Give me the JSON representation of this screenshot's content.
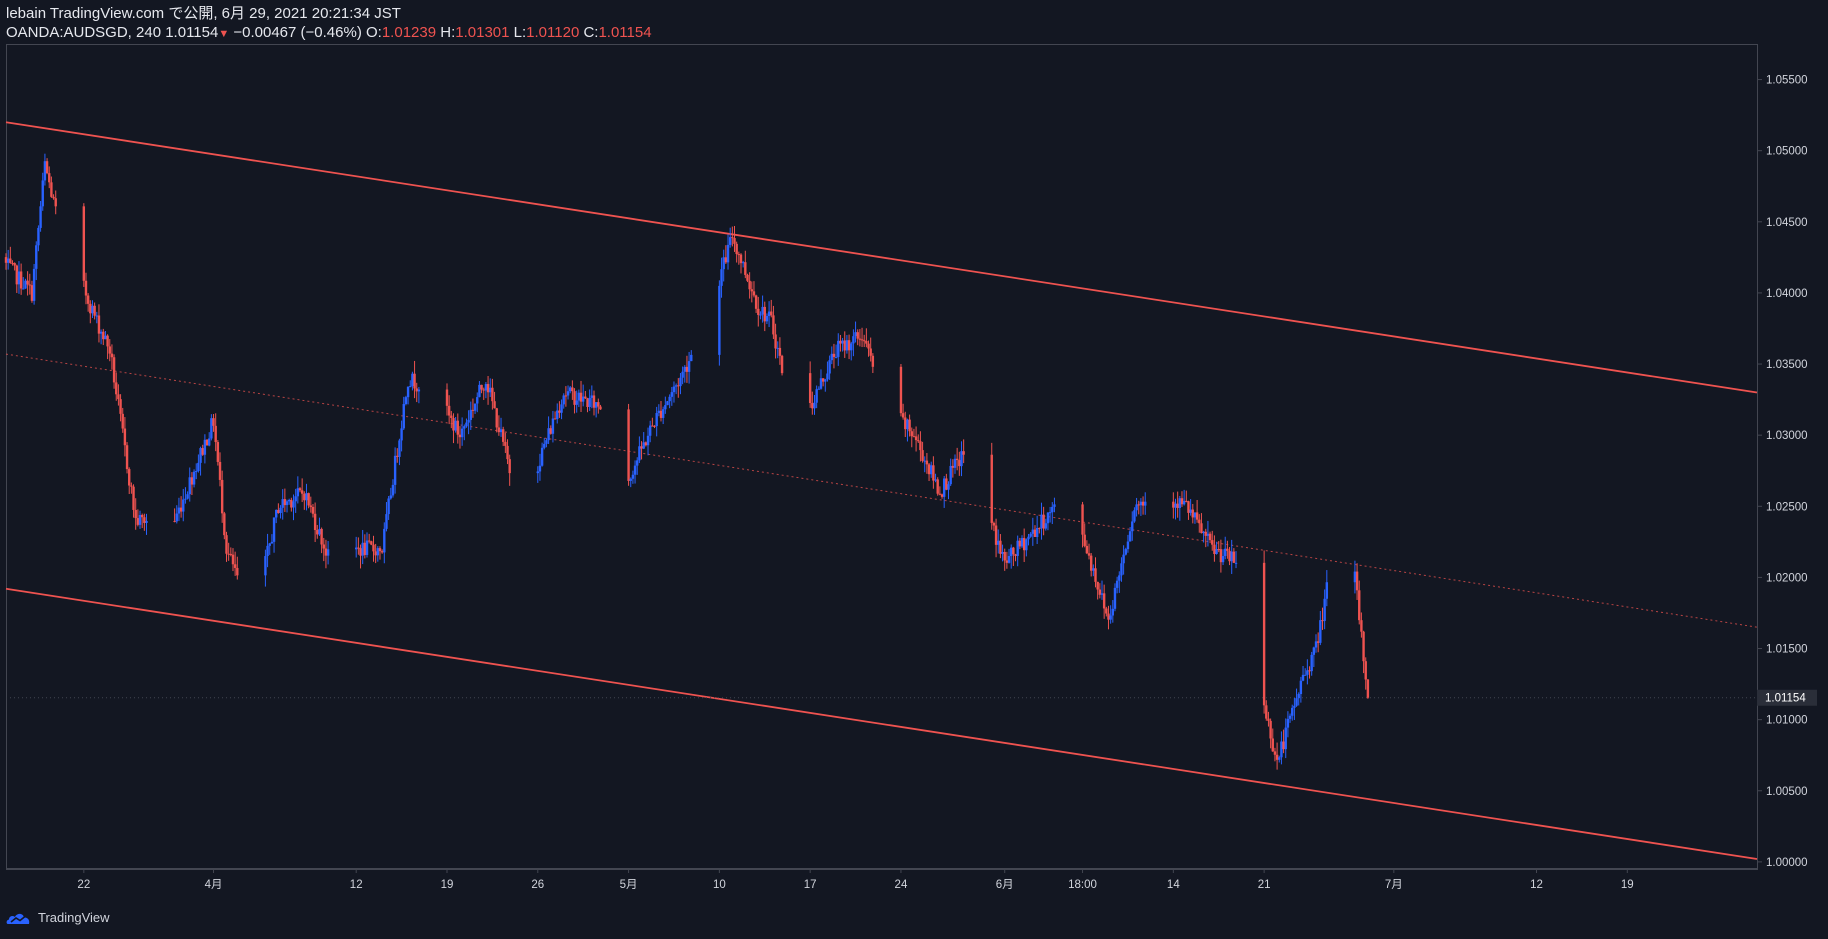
{
  "header": {
    "publish_line": "lebain TradingView.com で公開, 6月 29, 2021 20:21:34 JST",
    "symbol": "OANDA:AUDSGD, 240",
    "last": "1.01154",
    "arrow": "▼",
    "change": "−0.00467 (−0.46%)",
    "o_label": "O:",
    "o_value": "1.01239",
    "h_label": "H:",
    "h_value": "1.01301",
    "l_label": "L:",
    "l_value": "1.01120",
    "c_label": "C:",
    "c_value": "1.01154"
  },
  "footer": {
    "brand": "TradingView"
  },
  "colors": {
    "background": "#131722",
    "up": "#2962ff",
    "down": "#ef5350",
    "channel": "#ef5350",
    "axis_text": "#d1d4dc",
    "price_tag_bg": "#2a2e39"
  },
  "chart_data": {
    "type": "candlestick",
    "symbol": "OANDA:AUDSGD",
    "interval": "240",
    "ylim": [
      0.9995,
      1.0575
    ],
    "y_ticks": [
      {
        "value": 1.055,
        "label": "1.05500"
      },
      {
        "value": 1.05,
        "label": "1.05000"
      },
      {
        "value": 1.045,
        "label": "1.04500"
      },
      {
        "value": 1.04,
        "label": "1.04000"
      },
      {
        "value": 1.035,
        "label": "1.03500"
      },
      {
        "value": 1.03,
        "label": "1.03000"
      },
      {
        "value": 1.025,
        "label": "1.02500"
      },
      {
        "value": 1.02,
        "label": "1.02000"
      },
      {
        "value": 1.015,
        "label": "1.01500"
      },
      {
        "value": 1.01,
        "label": "1.01000"
      },
      {
        "value": 1.005,
        "label": "1.00500"
      },
      {
        "value": 1.0,
        "label": "1.00000"
      }
    ],
    "x_ticks": [
      {
        "date": "2021-03-22",
        "label": "22"
      },
      {
        "date": "2021-04-01",
        "label": "4月"
      },
      {
        "date": "2021-04-12",
        "label": "12"
      },
      {
        "date": "2021-04-19",
        "label": "19"
      },
      {
        "date": "2021-04-26",
        "label": "26"
      },
      {
        "date": "2021-05-03",
        "label": "5月"
      },
      {
        "date": "2021-05-10",
        "label": "10"
      },
      {
        "date": "2021-05-17",
        "label": "17"
      },
      {
        "date": "2021-05-24",
        "label": "24"
      },
      {
        "date": "2021-06-01",
        "label": "6月"
      },
      {
        "date": "2021-06-07",
        "label": "18:00"
      },
      {
        "date": "2021-06-14",
        "label": "14"
      },
      {
        "date": "2021-06-21",
        "label": "21"
      },
      {
        "date": "2021-07-01",
        "label": "7月"
      },
      {
        "date": "2021-07-12",
        "label": "12"
      },
      {
        "date": "2021-07-19",
        "label": "19"
      }
    ],
    "last_price": {
      "value": 1.01154,
      "label": "1.01154"
    },
    "channel": {
      "upper": [
        {
          "date": "2021-03-16",
          "price": 1.052
        },
        {
          "date": "2021-07-29",
          "price": 1.033
        }
      ],
      "middle": [
        {
          "date": "2021-03-16",
          "price": 1.0357
        },
        {
          "date": "2021-07-29",
          "price": 1.0165
        }
      ],
      "lower": [
        {
          "date": "2021-03-16",
          "price": 1.0192
        },
        {
          "date": "2021-07-29",
          "price": 1.0002
        }
      ]
    },
    "price_path": [
      {
        "date": "2021-03-16",
        "price": 1.042
      },
      {
        "date": "2021-03-18",
        "price": 1.04
      },
      {
        "date": "2021-03-19",
        "price": 1.049
      },
      {
        "date": "2021-03-20",
        "price": 1.045
      },
      {
        "date": "2021-03-23",
        "price": 1.038
      },
      {
        "date": "2021-03-24",
        "price": 1.036
      },
      {
        "date": "2021-03-26",
        "price": 1.024
      },
      {
        "date": "2021-03-29",
        "price": 1.024
      },
      {
        "date": "2021-04-01",
        "price": 1.031
      },
      {
        "date": "2021-04-02",
        "price": 1.022
      },
      {
        "date": "2021-04-04",
        "price": 1.017
      },
      {
        "date": "2021-04-06",
        "price": 1.025
      },
      {
        "date": "2021-04-08",
        "price": 1.026
      },
      {
        "date": "2021-04-10",
        "price": 1.021
      },
      {
        "date": "2021-04-12",
        "price": 1.022
      },
      {
        "date": "2021-04-14",
        "price": 1.022
      },
      {
        "date": "2021-04-16",
        "price": 1.034
      },
      {
        "date": "2021-04-18",
        "price": 1.033
      },
      {
        "date": "2021-04-20",
        "price": 1.03
      },
      {
        "date": "2021-04-22",
        "price": 1.034
      },
      {
        "date": "2021-04-24",
        "price": 1.027
      },
      {
        "date": "2021-04-26",
        "price": 1.028
      },
      {
        "date": "2021-04-28",
        "price": 1.033
      },
      {
        "date": "2021-05-01",
        "price": 1.032
      },
      {
        "date": "2021-05-03",
        "price": 1.027
      },
      {
        "date": "2021-05-05",
        "price": 1.031
      },
      {
        "date": "2021-05-07",
        "price": 1.034
      },
      {
        "date": "2021-05-09",
        "price": 1.038
      },
      {
        "date": "2021-05-11",
        "price": 1.044
      },
      {
        "date": "2021-05-13",
        "price": 1.039
      },
      {
        "date": "2021-05-14",
        "price": 1.038
      },
      {
        "date": "2021-05-16",
        "price": 1.03
      },
      {
        "date": "2021-05-19",
        "price": 1.036
      },
      {
        "date": "2021-05-21",
        "price": 1.037
      },
      {
        "date": "2021-05-23",
        "price": 1.032
      },
      {
        "date": "2021-05-25",
        "price": 1.03
      },
      {
        "date": "2021-05-27",
        "price": 1.026
      },
      {
        "date": "2021-05-29",
        "price": 1.029
      },
      {
        "date": "2021-06-01",
        "price": 1.021
      },
      {
        "date": "2021-06-03",
        "price": 1.023
      },
      {
        "date": "2021-06-05",
        "price": 1.025
      },
      {
        "date": "2021-06-07",
        "price": 1.023
      },
      {
        "date": "2021-06-09",
        "price": 1.017
      },
      {
        "date": "2021-06-11",
        "price": 1.025
      },
      {
        "date": "2021-06-13",
        "price": 1.026
      },
      {
        "date": "2021-06-15",
        "price": 1.025
      },
      {
        "date": "2021-06-17",
        "price": 1.022
      },
      {
        "date": "2021-06-19",
        "price": 1.021
      },
      {
        "date": "2021-06-20",
        "price": 1.015
      },
      {
        "date": "2021-06-22",
        "price": 1.007
      },
      {
        "date": "2021-06-24",
        "price": 1.013
      },
      {
        "date": "2021-06-25",
        "price": 1.015
      },
      {
        "date": "2021-06-26",
        "price": 1.02
      },
      {
        "date": "2021-06-27",
        "price": 1.019
      },
      {
        "date": "2021-06-28",
        "price": 1.02
      },
      {
        "date": "2021-06-29",
        "price": 1.01154
      }
    ]
  }
}
